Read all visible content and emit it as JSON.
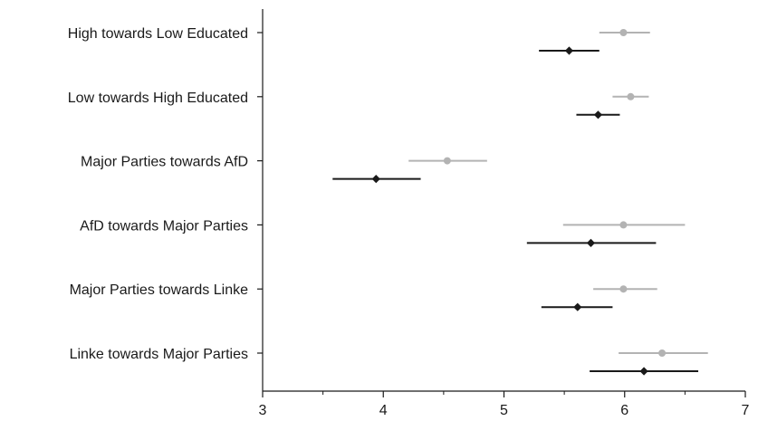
{
  "chart_data": {
    "type": "scatter",
    "title": "",
    "xlabel": "",
    "ylabel": "",
    "xlim": [
      3,
      7
    ],
    "x_ticks": [
      3,
      4,
      5,
      6,
      7
    ],
    "grid": false,
    "legend": "none",
    "rows": [
      {
        "label": "High towards Low Educated",
        "gray": {
          "value": 5.99,
          "low": 5.79,
          "high": 6.21
        },
        "black": {
          "value": 5.54,
          "low": 5.29,
          "high": 5.79
        }
      },
      {
        "label": "Low towards High Educated",
        "gray": {
          "value": 6.05,
          "low": 5.9,
          "high": 6.2
        },
        "black": {
          "value": 5.78,
          "low": 5.6,
          "high": 5.96
        }
      },
      {
        "label": "Major Parties towards AfD",
        "gray": {
          "value": 4.53,
          "low": 4.21,
          "high": 4.86
        },
        "black": {
          "value": 3.94,
          "low": 3.58,
          "high": 4.31
        }
      },
      {
        "label": "AfD towards Major Parties",
        "gray": {
          "value": 5.99,
          "low": 5.49,
          "high": 6.5
        },
        "black": {
          "value": 5.72,
          "low": 5.19,
          "high": 6.26
        }
      },
      {
        "label": "Major Parties towards Linke",
        "gray": {
          "value": 5.99,
          "low": 5.74,
          "high": 6.27
        },
        "black": {
          "value": 5.61,
          "low": 5.31,
          "high": 5.9
        }
      },
      {
        "label": "Linke towards Major Parties",
        "gray": {
          "value": 6.31,
          "low": 5.95,
          "high": 6.69
        },
        "black": {
          "value": 6.16,
          "low": 5.71,
          "high": 6.61
        }
      }
    ],
    "colors": {
      "gray": "#b3b3b3",
      "black": "#1a1a1a",
      "axis": "#1a1a1a"
    }
  }
}
